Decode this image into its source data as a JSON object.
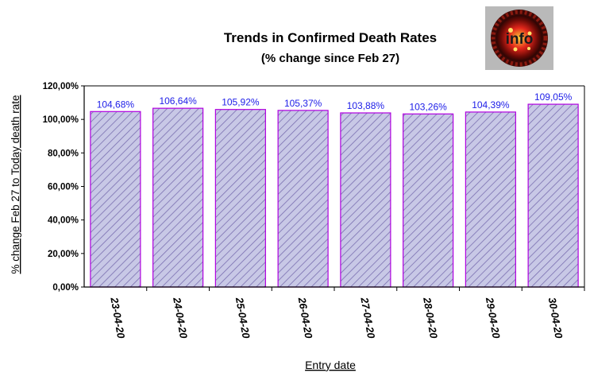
{
  "chart_data": {
    "type": "bar",
    "title": "Trends in Confirmed Death Rates",
    "subtitle": "(% change since Feb 27)",
    "xlabel": "Entry date",
    "ylabel": "% change Feb 27 to Today death rate",
    "categories": [
      "23-04-20",
      "24-04-20",
      "25-04-20",
      "26-04-20",
      "27-04-20",
      "28-04-20",
      "29-04-20",
      "30-04-20"
    ],
    "values": [
      104.68,
      106.64,
      105.92,
      105.37,
      103.88,
      103.26,
      104.39,
      109.05
    ],
    "value_labels": [
      "104,68%",
      "106,64%",
      "105,92%",
      "105,37%",
      "103,88%",
      "103,26%",
      "104,39%",
      "109,05%"
    ],
    "ylim": [
      0,
      120
    ],
    "yticks": [
      0,
      20,
      40,
      60,
      80,
      100,
      120
    ],
    "ytick_labels": [
      "0,00%",
      "20,00%",
      "40,00%",
      "60,00%",
      "80,00%",
      "100,00%",
      "120,00%"
    ],
    "grid": false,
    "legend": "none",
    "colors": {
      "bar_fill": "#c8c8e6",
      "bar_hatch": "#7a6fb0",
      "bar_border": "#b000e0",
      "value_label": "#2020e8",
      "axis": "#000000"
    }
  },
  "logo": {
    "icon": "virus-info-logo",
    "text": "info"
  }
}
